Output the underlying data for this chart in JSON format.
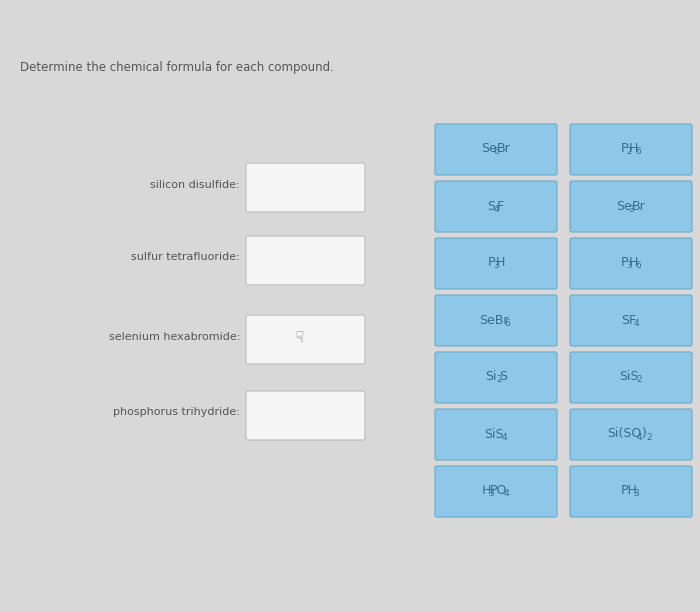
{
  "title": "Determine the chemical formula for each compound.",
  "background_color": "#d8d8d8",
  "left_labels": [
    "silicon disulfide:",
    "sulfur tetrafluoride:",
    "selenium hexabromide:",
    "phosphorus trihydride:"
  ],
  "box_color": "#8dc8e8",
  "box_border_color": "#6aaac8",
  "text_color": "#3a6a90",
  "empty_box_color": "#f5f5f5",
  "empty_box_border": "#bbbbbb",
  "btn_col1": [
    [
      [
        "Se",
        false
      ],
      [
        "6",
        true
      ],
      [
        "Br",
        false
      ]
    ],
    [
      [
        "S",
        false
      ],
      [
        "4",
        true
      ],
      [
        "F",
        false
      ]
    ],
    [
      [
        "P",
        false
      ],
      [
        "3",
        true
      ],
      [
        "H",
        false
      ]
    ],
    [
      [
        "SeBr",
        false
      ],
      [
        "6",
        true
      ]
    ],
    [
      [
        "Si",
        false
      ],
      [
        "2",
        true
      ],
      [
        "S",
        false
      ]
    ],
    [
      [
        "SiS",
        false
      ],
      [
        "4",
        true
      ]
    ],
    [
      [
        "H",
        false
      ],
      [
        "3",
        true
      ],
      [
        "PO",
        false
      ],
      [
        "4",
        true
      ]
    ]
  ],
  "btn_col2": [
    [
      [
        "P",
        false
      ],
      [
        "2",
        true
      ],
      [
        "H",
        false
      ],
      [
        "6",
        true
      ]
    ],
    [
      [
        "Se",
        false
      ],
      [
        "3",
        true
      ],
      [
        "Br",
        false
      ]
    ],
    [
      [
        "P",
        false
      ],
      [
        "3",
        true
      ],
      [
        "H",
        false
      ],
      [
        "6",
        true
      ]
    ],
    [
      [
        "SF",
        false
      ],
      [
        "4",
        true
      ]
    ],
    [
      [
        "SiS",
        false
      ],
      [
        "2",
        true
      ]
    ],
    [
      [
        "Si(SO",
        false
      ],
      [
        "4",
        true
      ],
      [
        ")",
        false
      ],
      [
        "2",
        true
      ]
    ],
    [
      [
        "PH",
        false
      ],
      [
        "3",
        true
      ]
    ]
  ]
}
